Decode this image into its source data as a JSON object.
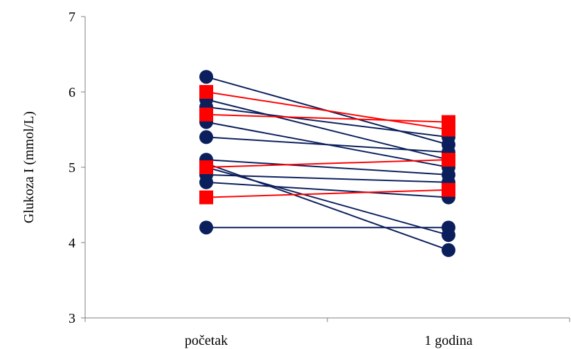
{
  "chart_data": {
    "type": "line",
    "ylabel": "Glukoza I (mmol/L)",
    "xlabel": "",
    "categories": [
      "početak",
      "1 godina"
    ],
    "ylim": [
      3,
      7
    ],
    "yticks": [
      3,
      4,
      5,
      6,
      7
    ],
    "grid": false,
    "legend": "none",
    "colors": {
      "group_a": "#ff0000",
      "group_b": "#0b1f5c"
    },
    "series": [
      {
        "group": "group_a",
        "marker": "square",
        "values": [
          6.0,
          5.5
        ]
      },
      {
        "group": "group_a",
        "marker": "square",
        "values": [
          5.7,
          5.6
        ]
      },
      {
        "group": "group_a",
        "marker": "square",
        "values": [
          5.0,
          5.1
        ]
      },
      {
        "group": "group_a",
        "marker": "square",
        "values": [
          4.6,
          4.7
        ]
      },
      {
        "group": "group_b",
        "marker": "circle",
        "values": [
          6.2,
          5.3
        ]
      },
      {
        "group": "group_b",
        "marker": "circle",
        "values": [
          5.9,
          5.1
        ]
      },
      {
        "group": "group_b",
        "marker": "circle",
        "values": [
          5.8,
          5.4
        ]
      },
      {
        "group": "group_b",
        "marker": "circle",
        "values": [
          5.6,
          5.0
        ]
      },
      {
        "group": "group_b",
        "marker": "circle",
        "values": [
          5.4,
          5.2
        ]
      },
      {
        "group": "group_b",
        "marker": "circle",
        "values": [
          5.1,
          4.9
        ]
      },
      {
        "group": "group_b",
        "marker": "circle",
        "values": [
          5.0,
          4.1
        ]
      },
      {
        "group": "group_b",
        "marker": "circle",
        "values": [
          5.05,
          3.9
        ]
      },
      {
        "group": "group_b",
        "marker": "circle",
        "values": [
          4.9,
          4.8
        ]
      },
      {
        "group": "group_b",
        "marker": "circle",
        "values": [
          4.8,
          4.6
        ]
      },
      {
        "group": "group_b",
        "marker": "circle",
        "values": [
          4.2,
          4.2
        ]
      }
    ]
  }
}
